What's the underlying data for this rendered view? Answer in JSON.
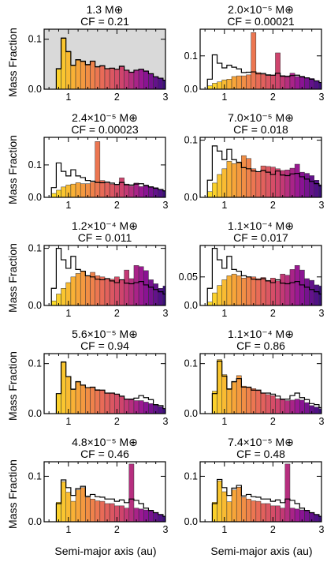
{
  "figure": {
    "xlabel": "Semi-major axis (au)",
    "ylabel": "Mass Fraction",
    "xlim": [
      0.5,
      3.0
    ],
    "bin_width": 0.1,
    "panel_colors": {
      "background_first_panel": "#d9d9d9",
      "reference_outline": "#000000"
    }
  },
  "chart_data": [
    {
      "type": "bar",
      "mass_text": "1.3 M⊕",
      "cf_text": "CF = 0.21",
      "ylim": [
        0,
        0.12
      ],
      "ytick_values": [
        0.0,
        0.1
      ],
      "ytick_labels": [
        "0.0",
        "0.1"
      ],
      "xtick_values": [
        1,
        2,
        3
      ],
      "xtick_labels": [
        "1",
        "2",
        "3"
      ],
      "shaded_background": true,
      "x": [
        0.8,
        0.9,
        1.0,
        1.1,
        1.2,
        1.3,
        1.4,
        1.5,
        1.6,
        1.7,
        1.8,
        1.9,
        2.0,
        2.1,
        2.2,
        2.3,
        2.4,
        2.5,
        2.6,
        2.7,
        2.8,
        2.9,
        3.0
      ],
      "values": [
        0.04,
        0.103,
        0.076,
        0.047,
        0.058,
        0.055,
        0.05,
        0.056,
        0.044,
        0.046,
        0.041,
        0.042,
        0.04,
        0.045,
        0.038,
        0.034,
        0.038,
        0.04,
        0.037,
        0.031,
        0.025,
        0.022,
        0.018
      ],
      "reference": [
        0.041,
        0.102,
        0.075,
        0.048,
        0.059,
        0.056,
        0.049,
        0.056,
        0.045,
        0.047,
        0.041,
        0.042,
        0.04,
        0.046,
        0.038,
        0.034,
        0.038,
        0.04,
        0.036,
        0.031,
        0.025,
        0.022,
        0.018
      ]
    },
    {
      "type": "bar",
      "mass_text": "2.0×10⁻⁵ M⊕",
      "cf_text": "CF = 0.00021",
      "ylim": [
        0,
        0.18
      ],
      "ytick_values": [
        0.0,
        0.1
      ],
      "ytick_labels": [
        "0.0",
        "0.1"
      ],
      "xtick_values": [
        1,
        2,
        3
      ],
      "xtick_labels": [
        "1",
        "2",
        "3"
      ],
      "shaded_background": false,
      "x": [
        0.7,
        0.8,
        0.9,
        1.0,
        1.1,
        1.2,
        1.3,
        1.4,
        1.5,
        1.6,
        1.7,
        1.8,
        1.9,
        2.0,
        2.1,
        2.2,
        2.3,
        2.4,
        2.5,
        2.6,
        2.7,
        2.8,
        2.9,
        3.0
      ],
      "values": [
        0.01,
        0.018,
        0.022,
        0.028,
        0.03,
        0.038,
        0.04,
        0.04,
        0.043,
        0.17,
        0.05,
        0.045,
        0.041,
        0.042,
        0.109,
        0.041,
        0.04,
        0.048,
        0.038,
        0.039,
        0.034,
        0.032,
        0.025,
        0.02
      ],
      "reference": [
        0.03,
        0.103,
        0.078,
        0.064,
        0.072,
        0.066,
        0.061,
        0.05,
        0.051,
        0.052,
        0.046,
        0.047,
        0.043,
        0.042,
        0.048,
        0.039,
        0.038,
        0.041,
        0.042,
        0.037,
        0.034,
        0.03,
        0.025,
        0.02
      ]
    },
    {
      "type": "bar",
      "mass_text": "2.4×10⁻⁵ M⊕",
      "cf_text": "CF = 0.00023",
      "ylim": [
        0,
        0.185
      ],
      "ytick_values": [
        0.0,
        0.1
      ],
      "ytick_labels": [
        "0.0",
        "0.1"
      ],
      "xtick_values": [
        1,
        2,
        3
      ],
      "xtick_labels": [
        "1",
        "2",
        "3"
      ],
      "shaded_background": false,
      "x": [
        0.7,
        0.8,
        0.9,
        1.0,
        1.1,
        1.2,
        1.3,
        1.4,
        1.5,
        1.6,
        1.7,
        1.8,
        1.9,
        2.0,
        2.1,
        2.2,
        2.3,
        2.4,
        2.5,
        2.6,
        2.7,
        2.8,
        2.9,
        3.0
      ],
      "values": [
        0.012,
        0.022,
        0.032,
        0.038,
        0.041,
        0.045,
        0.042,
        0.042,
        0.047,
        0.172,
        0.052,
        0.045,
        0.041,
        0.038,
        0.06,
        0.041,
        0.035,
        0.044,
        0.033,
        0.038,
        0.033,
        0.03,
        0.024,
        0.02
      ],
      "reference": [
        0.03,
        0.106,
        0.08,
        0.066,
        0.085,
        0.066,
        0.061,
        0.052,
        0.05,
        0.046,
        0.045,
        0.047,
        0.044,
        0.04,
        0.046,
        0.039,
        0.038,
        0.041,
        0.042,
        0.036,
        0.032,
        0.028,
        0.024,
        0.02
      ]
    },
    {
      "type": "bar",
      "mass_text": "7.0×10⁻⁵ M⊕",
      "cf_text": "CF = 0.018",
      "ylim": [
        0,
        0.105
      ],
      "ytick_values": [
        0.0,
        0.1
      ],
      "ytick_labels": [
        "0.0",
        "0.1"
      ],
      "xtick_values": [
        1,
        2,
        3
      ],
      "xtick_labels": [
        "1",
        "2",
        "3"
      ],
      "shaded_background": false,
      "x": [
        0.7,
        0.8,
        0.9,
        1.0,
        1.1,
        1.2,
        1.3,
        1.4,
        1.5,
        1.6,
        1.7,
        1.8,
        1.9,
        2.0,
        2.1,
        2.2,
        2.3,
        2.4,
        2.5,
        2.6,
        2.7,
        2.8,
        2.9,
        3.0
      ],
      "values": [
        0.01,
        0.025,
        0.04,
        0.05,
        0.063,
        0.059,
        0.062,
        0.073,
        0.068,
        0.05,
        0.045,
        0.055,
        0.054,
        0.053,
        0.05,
        0.047,
        0.048,
        0.051,
        0.058,
        0.044,
        0.042,
        0.038,
        0.03,
        0.022
      ],
      "reference": [
        0.03,
        0.09,
        0.081,
        0.066,
        0.084,
        0.066,
        0.061,
        0.052,
        0.05,
        0.046,
        0.045,
        0.047,
        0.044,
        0.04,
        0.046,
        0.039,
        0.038,
        0.041,
        0.042,
        0.036,
        0.032,
        0.028,
        0.024,
        0.02
      ]
    },
    {
      "type": "bar",
      "mass_text": "1.2×10⁻⁴ M⊕",
      "cf_text": "CF = 0.011",
      "ylim": [
        0,
        0.105
      ],
      "ytick_values": [
        0.0,
        0.1
      ],
      "ytick_labels": [
        "0.0",
        "0.1"
      ],
      "xtick_values": [
        1,
        2,
        3
      ],
      "xtick_labels": [
        "1",
        "2",
        "3"
      ],
      "shaded_background": false,
      "x": [
        0.7,
        0.8,
        0.9,
        1.0,
        1.1,
        1.2,
        1.3,
        1.4,
        1.5,
        1.6,
        1.7,
        1.8,
        1.9,
        2.0,
        2.1,
        2.2,
        2.3,
        2.4,
        2.5,
        2.6,
        2.7,
        2.8,
        2.9,
        3.0
      ],
      "values": [
        0.008,
        0.02,
        0.03,
        0.04,
        0.05,
        0.056,
        0.06,
        0.052,
        0.058,
        0.052,
        0.05,
        0.047,
        0.046,
        0.05,
        0.045,
        0.062,
        0.047,
        0.07,
        0.068,
        0.061,
        0.045,
        0.038,
        0.03,
        0.034
      ],
      "reference": [
        0.03,
        0.1,
        0.08,
        0.065,
        0.086,
        0.063,
        0.06,
        0.052,
        0.05,
        0.046,
        0.045,
        0.047,
        0.043,
        0.04,
        0.045,
        0.039,
        0.038,
        0.04,
        0.042,
        0.036,
        0.032,
        0.028,
        0.024,
        0.02
      ]
    },
    {
      "type": "bar",
      "mass_text": "1.1×10⁻⁴ M⊕",
      "cf_text": "CF = 0.017",
      "ylim": [
        0,
        0.105
      ],
      "ytick_values": [
        0.0,
        0.05
      ],
      "ytick_labels": [
        "0.0",
        "0.05"
      ],
      "xtick_values": [
        1,
        2,
        3
      ],
      "xtick_labels": [
        "1",
        "2",
        "3"
      ],
      "shaded_background": false,
      "x": [
        0.7,
        0.8,
        0.9,
        1.0,
        1.1,
        1.2,
        1.3,
        1.4,
        1.5,
        1.6,
        1.7,
        1.8,
        1.9,
        2.0,
        2.1,
        2.2,
        2.3,
        2.4,
        2.5,
        2.6,
        2.7,
        2.8,
        2.9,
        3.0
      ],
      "values": [
        0.006,
        0.022,
        0.035,
        0.045,
        0.052,
        0.055,
        0.052,
        0.048,
        0.05,
        0.05,
        0.047,
        0.049,
        0.044,
        0.048,
        0.043,
        0.055,
        0.053,
        0.063,
        0.07,
        0.062,
        0.047,
        0.044,
        0.036,
        0.034
      ],
      "reference": [
        0.03,
        0.1,
        0.08,
        0.065,
        0.086,
        0.063,
        0.06,
        0.052,
        0.05,
        0.046,
        0.045,
        0.047,
        0.043,
        0.04,
        0.045,
        0.039,
        0.038,
        0.04,
        0.042,
        0.036,
        0.032,
        0.028,
        0.024,
        0.02
      ]
    },
    {
      "type": "bar",
      "mass_text": "5.6×10⁻⁵ M⊕",
      "cf_text": "CF = 0.94",
      "ylim": [
        0,
        0.12
      ],
      "ytick_values": [
        0.0,
        0.1
      ],
      "ytick_labels": [
        "0.0",
        "0.1"
      ],
      "xtick_values": [
        1,
        2,
        3
      ],
      "xtick_labels": [
        "1",
        "2",
        "3"
      ],
      "shaded_background": false,
      "x": [
        0.8,
        0.9,
        1.0,
        1.1,
        1.2,
        1.3,
        1.4,
        1.5,
        1.6,
        1.7,
        1.8,
        1.9,
        2.0,
        2.1,
        2.2,
        2.3,
        2.4,
        2.5,
        2.6,
        2.7,
        2.8,
        2.9,
        3.0
      ],
      "values": [
        0.04,
        0.104,
        0.074,
        0.048,
        0.063,
        0.057,
        0.052,
        0.052,
        0.048,
        0.047,
        0.041,
        0.041,
        0.039,
        0.034,
        0.029,
        0.028,
        0.026,
        0.026,
        0.023,
        0.02,
        0.017,
        0.014,
        0.01
      ],
      "reference": [
        0.04,
        0.103,
        0.074,
        0.049,
        0.064,
        0.057,
        0.052,
        0.053,
        0.047,
        0.047,
        0.041,
        0.041,
        0.039,
        0.035,
        0.029,
        0.029,
        0.031,
        0.036,
        0.032,
        0.028,
        0.018,
        0.016,
        0.01
      ]
    },
    {
      "type": "bar",
      "mass_text": "1.1×10⁻⁴ M⊕",
      "cf_text": "CF = 0.86",
      "ylim": [
        0,
        0.12
      ],
      "ytick_values": [
        0.0,
        0.1
      ],
      "ytick_labels": [
        "0.0",
        "0.1"
      ],
      "xtick_values": [
        1,
        2,
        3
      ],
      "xtick_labels": [
        "1",
        "2",
        "3"
      ],
      "shaded_background": false,
      "x": [
        0.8,
        0.9,
        1.0,
        1.1,
        1.2,
        1.3,
        1.4,
        1.5,
        1.6,
        1.7,
        1.8,
        1.9,
        2.0,
        2.1,
        2.2,
        2.3,
        2.4,
        2.5,
        2.6,
        2.7,
        2.8,
        2.9,
        3.0
      ],
      "values": [
        0.045,
        0.108,
        0.078,
        0.05,
        0.063,
        0.076,
        0.055,
        0.052,
        0.05,
        0.046,
        0.041,
        0.038,
        0.036,
        0.03,
        0.028,
        0.026,
        0.027,
        0.029,
        0.027,
        0.022,
        0.016,
        0.013,
        0.01
      ],
      "reference": [
        0.04,
        0.105,
        0.075,
        0.049,
        0.064,
        0.07,
        0.053,
        0.053,
        0.047,
        0.047,
        0.041,
        0.041,
        0.039,
        0.035,
        0.029,
        0.029,
        0.036,
        0.041,
        0.032,
        0.028,
        0.02,
        0.018,
        0.012
      ]
    },
    {
      "type": "bar",
      "mass_text": "4.8×10⁻⁵ M⊕",
      "cf_text": "CF = 0.46",
      "ylim": [
        0,
        0.132
      ],
      "ytick_values": [
        0.0,
        0.1
      ],
      "ytick_labels": [
        "0.0",
        "0.1"
      ],
      "xtick_values": [
        1,
        2,
        3
      ],
      "xtick_labels": [
        "1",
        "2",
        "3"
      ],
      "shaded_background": false,
      "x": [
        0.8,
        0.9,
        1.0,
        1.1,
        1.2,
        1.3,
        1.4,
        1.5,
        1.6,
        1.7,
        1.8,
        1.9,
        2.0,
        2.1,
        2.2,
        2.3,
        2.4,
        2.5,
        2.6,
        2.7,
        2.8,
        2.9,
        3.0
      ],
      "values": [
        0.043,
        0.088,
        0.065,
        0.045,
        0.07,
        0.075,
        0.054,
        0.05,
        0.046,
        0.045,
        0.04,
        0.04,
        0.035,
        0.035,
        0.03,
        0.127,
        0.03,
        0.028,
        0.026,
        0.024,
        0.02,
        0.016,
        0.012
      ],
      "reference": [
        0.04,
        0.092,
        0.075,
        0.058,
        0.073,
        0.078,
        0.056,
        0.06,
        0.055,
        0.054,
        0.05,
        0.05,
        0.045,
        0.048,
        0.042,
        0.05,
        0.047,
        0.04,
        0.03,
        0.025,
        0.02,
        0.016,
        0.012
      ]
    },
    {
      "type": "bar",
      "mass_text": "7.4×10⁻⁵ M⊕",
      "cf_text": "CF = 0.48",
      "ylim": [
        0,
        0.132
      ],
      "ytick_values": [
        0.0,
        0.1
      ],
      "ytick_labels": [
        "0.0",
        "0.1"
      ],
      "xtick_values": [
        1,
        2,
        3
      ],
      "xtick_labels": [
        "1",
        "2",
        "3"
      ],
      "shaded_background": false,
      "x": [
        0.8,
        0.9,
        1.0,
        1.1,
        1.2,
        1.3,
        1.4,
        1.5,
        1.6,
        1.7,
        1.8,
        1.9,
        2.0,
        2.1,
        2.2,
        2.3,
        2.4,
        2.5,
        2.6,
        2.7,
        2.8,
        2.9,
        3.0
      ],
      "values": [
        0.043,
        0.09,
        0.066,
        0.044,
        0.07,
        0.076,
        0.054,
        0.05,
        0.046,
        0.045,
        0.04,
        0.04,
        0.035,
        0.035,
        0.03,
        0.127,
        0.03,
        0.028,
        0.026,
        0.024,
        0.02,
        0.016,
        0.012
      ],
      "reference": [
        0.04,
        0.093,
        0.075,
        0.058,
        0.074,
        0.08,
        0.057,
        0.06,
        0.055,
        0.054,
        0.05,
        0.05,
        0.045,
        0.048,
        0.042,
        0.05,
        0.047,
        0.04,
        0.03,
        0.025,
        0.02,
        0.016,
        0.012
      ]
    }
  ]
}
